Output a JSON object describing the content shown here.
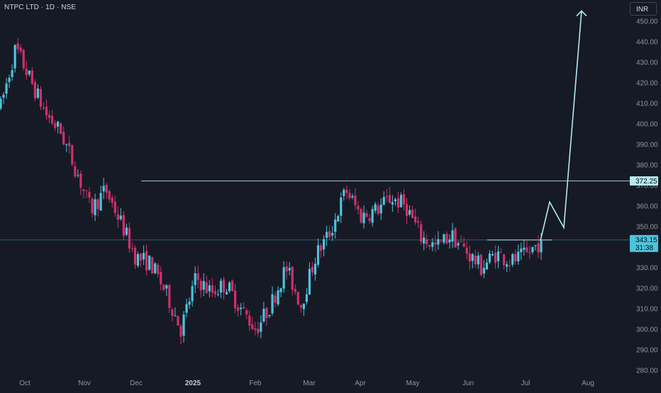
{
  "header": {
    "symbol_title": "NTPC LTD · 1D · NSE",
    "currency_button": "INR"
  },
  "colors": {
    "background": "#161a25",
    "up_candle": "#4dc3dc",
    "down_candle": "#d0306a",
    "annotation_line": "#b3e9f3",
    "axis_text": "#8f949f"
  },
  "chart_data": {
    "type": "candlestick",
    "y_axis": {
      "ticks": [
        "450.00",
        "440.00",
        "430.00",
        "420.00",
        "410.00",
        "400.00",
        "390.00",
        "380.00",
        "370.00",
        "360.00",
        "350.00",
        "340.00",
        "330.00",
        "320.00",
        "310.00",
        "300.00",
        "290.00",
        "280.00"
      ],
      "range": [
        276,
        457
      ]
    },
    "x_axis": {
      "labels": [
        "Oct",
        "Nov",
        "Dec",
        "2025",
        "Feb",
        "Mar",
        "Apr",
        "May",
        "Jun",
        "Jul",
        "Aug"
      ],
      "bold_labels": [
        "2025"
      ]
    },
    "series": [
      {
        "close": 408.5,
        "approx": true
      },
      {
        "close": 437.0,
        "approx": true
      },
      {
        "close": 421.0,
        "approx": true
      },
      {
        "close": 405.0,
        "approx": true
      },
      {
        "close": 396.0,
        "approx": true
      },
      {
        "close": 378.0,
        "approx": true
      },
      {
        "close": 358.0,
        "approx": true
      },
      {
        "close": 368.0,
        "approx": true
      },
      {
        "close": 352.0,
        "approx": true
      },
      {
        "close": 335.0,
        "approx": true
      },
      {
        "close": 332.0,
        "approx": true
      },
      {
        "close": 318.0,
        "approx": true
      },
      {
        "close": 300.0,
        "approx": true
      },
      {
        "close": 325.0,
        "approx": true
      },
      {
        "close": 318.0,
        "approx": true
      },
      {
        "close": 322.0,
        "approx": true
      },
      {
        "close": 310.0,
        "approx": true
      },
      {
        "close": 300.0,
        "approx": true
      },
      {
        "close": 312.0,
        "approx": true
      },
      {
        "close": 330.0,
        "approx": true
      },
      {
        "close": 312.0,
        "approx": true
      },
      {
        "close": 336.0,
        "approx": true
      },
      {
        "close": 348.0,
        "approx": true
      },
      {
        "close": 368.0,
        "approx": true
      },
      {
        "close": 355.0,
        "approx": true
      },
      {
        "close": 358.0,
        "approx": true
      },
      {
        "close": 364.0,
        "approx": true
      },
      {
        "close": 360.0,
        "approx": true
      },
      {
        "close": 345.0,
        "approx": true
      },
      {
        "close": 340.0,
        "approx": true
      },
      {
        "close": 346.0,
        "approx": true
      },
      {
        "close": 338.0,
        "approx": true
      },
      {
        "close": 330.0,
        "approx": true
      },
      {
        "close": 337.0,
        "approx": true
      },
      {
        "close": 333.0,
        "approx": true
      },
      {
        "close": 336.0,
        "approx": true
      },
      {
        "close": 343.15,
        "approx": true
      }
    ],
    "annotations": {
      "resistance_level": 372.25,
      "breakout_level": 343.5,
      "projection_path": [
        343.15,
        362.0,
        349.5,
        455.0
      ]
    },
    "price_labels": {
      "resistance": "372.25",
      "last_price": "343.15",
      "countdown": "31:38"
    }
  }
}
